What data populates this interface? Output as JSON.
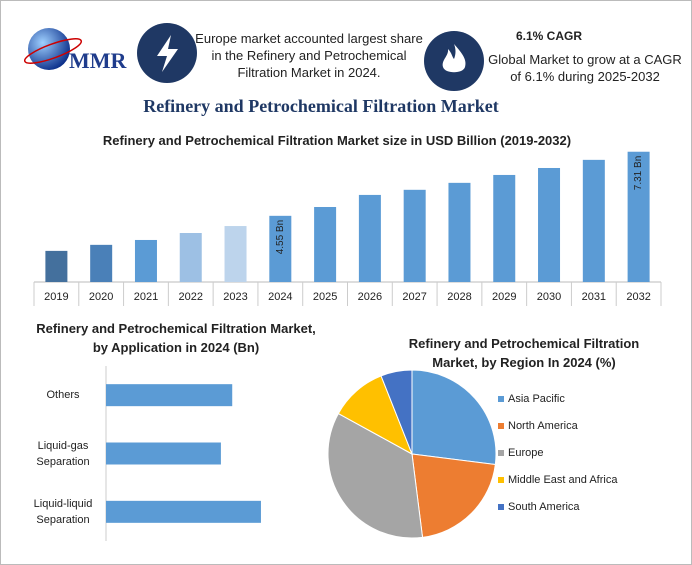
{
  "header": {
    "logo": "MMR",
    "note_left": "Europe market accounted largest share in the Refinery and Petrochemical Filtration Market in 2024.",
    "cagr_title": "6.1% CAGR",
    "cagr_text": "Global Market to grow at a CAGR of 6.1% during 2025-2032",
    "title": "Refinery and Petrochemical Filtration Market"
  },
  "chart_data": [
    {
      "type": "bar",
      "title": "Refinery and Petrochemical Filtration Market size in USD Billion (2019-2032)",
      "categories": [
        "2019",
        "2020",
        "2021",
        "2022",
        "2023",
        "2024",
        "2025",
        "2026",
        "2027",
        "2028",
        "2029",
        "2030",
        "2031",
        "2032"
      ],
      "values": [
        3.04,
        3.3,
        3.51,
        3.81,
        4.11,
        4.55,
        4.93,
        5.45,
        5.67,
        5.97,
        6.31,
        6.61,
        6.96,
        7.31
      ],
      "value_labels": [
        null,
        null,
        null,
        null,
        null,
        "4.55 Bn",
        null,
        null,
        null,
        null,
        null,
        null,
        null,
        "7.31 Bn"
      ],
      "colors": [
        "#44709d",
        "#4a80b8",
        "#5b9bd5",
        "#9dc0e4",
        "#bdd4ec",
        "#5b9bd5",
        "#5b9bd5",
        "#5b9bd5",
        "#5b9bd5",
        "#5b9bd5",
        "#5b9bd5",
        "#5b9bd5",
        "#5b9bd5",
        "#5b9bd5"
      ],
      "ylim": [
        1.7,
        7.6
      ]
    },
    {
      "type": "bar",
      "orientation": "horizontal",
      "title": "Refinery and Petrochemical Filtration Market, by Application in 2024 (Bn)",
      "categories": [
        "Others",
        "Liquid-gas Separation",
        "Liquid-liquid Separation"
      ],
      "values": [
        1.45,
        1.32,
        1.78
      ],
      "color": "#5b9bd5",
      "xlim": [
        0,
        2.24
      ]
    },
    {
      "type": "pie",
      "title": "Refinery and Petrochemical Filtration Market, by Region In 2024 (%)",
      "categories": [
        "Asia Pacific",
        "North America",
        "Europe",
        "Middle East and Africa",
        "South America"
      ],
      "values": [
        27,
        21,
        35,
        11,
        6
      ],
      "colors": [
        "#5b9bd5",
        "#ed7d31",
        "#a5a5a5",
        "#ffc000",
        "#4472c4"
      ],
      "legend": "right"
    }
  ]
}
